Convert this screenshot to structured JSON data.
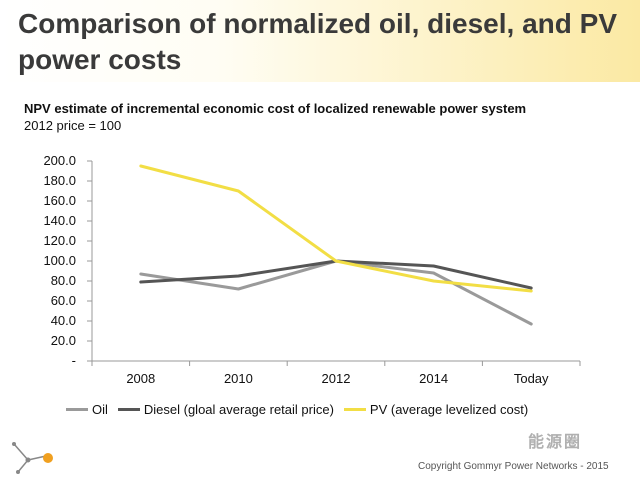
{
  "slide": {
    "title": "Comparison of normalized oil, diesel, and PV power costs",
    "copyright": "Copyright Gommyr Power Networks - 2015",
    "watermark": "能源圈"
  },
  "colors": {
    "oil": "#9a9a9a",
    "diesel": "#555555",
    "pv": "#f2de45",
    "axis": "#999999",
    "title_gradient_end": "#fbe9a3"
  },
  "chart_data": {
    "type": "line",
    "title": "NPV estimate of incremental economic cost of localized renewable power system",
    "subtitle": "2012 price = 100",
    "categories": [
      "2008",
      "2010",
      "2012",
      "2014",
      "Today"
    ],
    "y_tick_labels": [
      "-",
      "20.0",
      "40.0",
      "60.0",
      "80.0",
      "100.0",
      "120.0",
      "140.0",
      "160.0",
      "180.0",
      "200.0"
    ],
    "ylim": [
      0,
      200
    ],
    "xlabel": "",
    "ylabel": "",
    "grid": false,
    "legend_position": "bottom",
    "series": [
      {
        "name": "Oil",
        "color_key": "oil",
        "values": [
          87,
          72,
          100,
          88,
          37
        ]
      },
      {
        "name": "Diesel (gloal average retail price)",
        "color_key": "diesel",
        "values": [
          79,
          85,
          100,
          95,
          73
        ]
      },
      {
        "name": "PV (average levelized cost)",
        "color_key": "pv",
        "values": [
          195,
          170,
          100,
          80,
          70
        ]
      }
    ]
  }
}
